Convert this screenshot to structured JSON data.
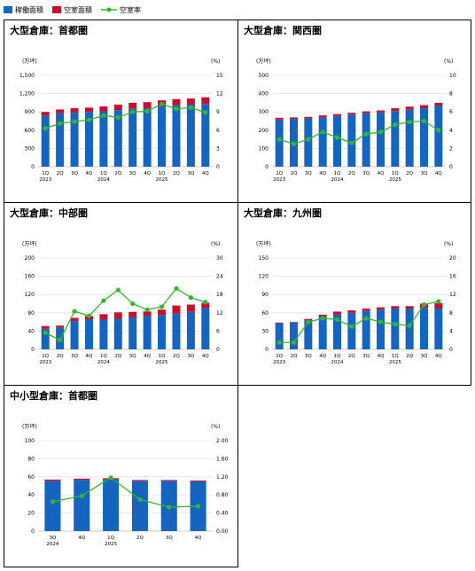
{
  "legend": {
    "bar_occupied": "稼働面積",
    "bar_vacant": "空室面積",
    "line_rate": "空室率"
  },
  "colors": {
    "occupied": "#1565c0",
    "vacant": "#c8102e",
    "rate": "#33b633",
    "axis": "#999999",
    "grid": "#d9d9d9"
  },
  "chart_data": [
    {
      "id": "tokyo_large",
      "type": "bar",
      "title": "大型倉庫：首都圏",
      "left_unit": "(万坪)",
      "right_unit": "(%)",
      "left_ylim": [
        0,
        1500
      ],
      "left_ticks": [
        0,
        300,
        600,
        900,
        1200,
        1500
      ],
      "left_tick_labels": [
        "0",
        "300",
        "600",
        "900",
        "1,200",
        "1,500"
      ],
      "right_ylim": [
        0,
        15
      ],
      "right_ticks": [
        0,
        3,
        6,
        9,
        12,
        15
      ],
      "right_tick_labels": [
        "0",
        "3",
        "6",
        "9",
        "12",
        "15"
      ],
      "categories": [
        "1Q",
        "2Q",
        "3Q",
        "4Q",
        "1Q",
        "2Q",
        "3Q",
        "4Q",
        "1Q",
        "2Q",
        "3Q",
        "4Q"
      ],
      "year_labels": [
        {
          "index": 0,
          "label": "2023"
        },
        {
          "index": 4,
          "label": "2024"
        },
        {
          "index": 8,
          "label": "2025"
        }
      ],
      "series": [
        {
          "name": "稼働面積",
          "kind": "bar",
          "values": [
            840,
            880,
            890,
            900,
            910,
            930,
            950,
            960,
            990,
            1010,
            1020,
            1030
          ]
        },
        {
          "name": "空室面積",
          "kind": "bar",
          "values": [
            60,
            60,
            70,
            70,
            80,
            90,
            100,
            100,
            100,
            100,
            100,
            110
          ]
        },
        {
          "name": "空室率",
          "kind": "line",
          "axis": "right",
          "values": [
            6.3,
            7.1,
            7.4,
            7.7,
            8.4,
            8.1,
            9.0,
            9.1,
            10.3,
            9.5,
            9.7,
            8.9
          ]
        }
      ]
    },
    {
      "id": "kansai_large",
      "type": "bar",
      "title": "大型倉庫：関西圏",
      "left_unit": "(万坪)",
      "right_unit": "(%)",
      "left_ylim": [
        0,
        500
      ],
      "left_ticks": [
        0,
        100,
        200,
        300,
        400,
        500
      ],
      "left_tick_labels": [
        "0",
        "100",
        "200",
        "300",
        "400",
        "500"
      ],
      "right_ylim": [
        0,
        10
      ],
      "right_ticks": [
        0,
        2,
        4,
        6,
        8,
        10
      ],
      "right_tick_labels": [
        "0",
        "2",
        "4",
        "6",
        "8",
        "10"
      ],
      "categories": [
        "1Q",
        "2Q",
        "3Q",
        "4Q",
        "1Q",
        "2Q",
        "3Q",
        "4Q",
        "1Q",
        "2Q",
        "3Q",
        "4Q"
      ],
      "year_labels": [
        {
          "index": 0,
          "label": "2023"
        },
        {
          "index": 4,
          "label": "2024"
        },
        {
          "index": 8,
          "label": "2025"
        }
      ],
      "series": [
        {
          "name": "稼働面積",
          "kind": "bar",
          "values": [
            258,
            262,
            264,
            270,
            278,
            285,
            293,
            297,
            305,
            312,
            320,
            335
          ]
        },
        {
          "name": "空室面積",
          "kind": "bar",
          "values": [
            10,
            8,
            9,
            11,
            10,
            10,
            10,
            11,
            15,
            17,
            17,
            15
          ]
        },
        {
          "name": "空室率",
          "kind": "line",
          "axis": "right",
          "values": [
            3.0,
            2.5,
            3.0,
            3.8,
            3.2,
            2.6,
            3.6,
            3.8,
            4.6,
            4.9,
            5.0,
            4.0
          ]
        }
      ]
    },
    {
      "id": "chubu_large",
      "type": "bar",
      "title": "大型倉庫：中部圏",
      "left_unit": "(万坪)",
      "right_unit": "(%)",
      "left_ylim": [
        0,
        200
      ],
      "left_ticks": [
        0,
        40,
        80,
        120,
        160,
        200
      ],
      "left_tick_labels": [
        "0",
        "40",
        "80",
        "120",
        "160",
        "200"
      ],
      "right_ylim": [
        0,
        30
      ],
      "right_ticks": [
        0,
        6,
        12,
        18,
        24,
        30
      ],
      "right_tick_labels": [
        "0",
        "6",
        "12",
        "18",
        "24",
        "30"
      ],
      "categories": [
        "1Q",
        "2Q",
        "3Q",
        "4Q",
        "1Q",
        "2Q",
        "3Q",
        "4Q",
        "1Q",
        "2Q",
        "3Q",
        "4Q"
      ],
      "year_labels": [
        {
          "index": 0,
          "label": "2023"
        },
        {
          "index": 4,
          "label": "2024"
        },
        {
          "index": 8,
          "label": "2025"
        }
      ],
      "series": [
        {
          "name": "稼働面積",
          "kind": "bar",
          "values": [
            45,
            47,
            62,
            65,
            65,
            67,
            70,
            73,
            75,
            78,
            82,
            90
          ]
        },
        {
          "name": "空室面積",
          "kind": "bar",
          "values": [
            6,
            5,
            7,
            8,
            12,
            14,
            12,
            10,
            12,
            18,
            16,
            12
          ]
        },
        {
          "name": "空室率",
          "kind": "line",
          "axis": "right",
          "values": [
            5.5,
            3.0,
            12.5,
            11.0,
            16.0,
            19.5,
            15.0,
            13.0,
            14.0,
            20.0,
            17.0,
            15.5
          ]
        }
      ]
    },
    {
      "id": "kyushu_large",
      "type": "bar",
      "title": "大型倉庫：九州圏",
      "left_unit": "(万坪)",
      "right_unit": "(%)",
      "left_ylim": [
        0,
        150
      ],
      "left_ticks": [
        0,
        30,
        60,
        90,
        120,
        150
      ],
      "left_tick_labels": [
        "0",
        "30",
        "60",
        "90",
        "120",
        "150"
      ],
      "right_ylim": [
        0,
        20
      ],
      "right_ticks": [
        0,
        4,
        8,
        12,
        16,
        20
      ],
      "right_tick_labels": [
        "0",
        "4",
        "8",
        "12",
        "16",
        "20"
      ],
      "categories": [
        "1Q",
        "2Q",
        "3Q",
        "4Q",
        "1Q",
        "2Q",
        "3Q",
        "4Q",
        "1Q",
        "2Q",
        "3Q",
        "4Q"
      ],
      "year_labels": [
        {
          "index": 0,
          "label": "2023"
        },
        {
          "index": 4,
          "label": "2024"
        },
        {
          "index": 8,
          "label": "2025"
        }
      ],
      "series": [
        {
          "name": "稼働面積",
          "kind": "bar",
          "values": [
            43,
            44,
            47,
            54,
            57,
            60,
            63,
            65,
            67,
            67,
            68,
            67
          ]
        },
        {
          "name": "空室面積",
          "kind": "bar",
          "values": [
            1,
            1,
            3,
            3,
            5,
            4,
            4,
            4,
            4,
            4,
            7,
            9
          ]
        },
        {
          "name": "空室率",
          "kind": "line",
          "axis": "right",
          "values": [
            1.5,
            1.5,
            6.0,
            6.8,
            6.5,
            5.0,
            6.8,
            6.0,
            5.5,
            5.2,
            9.8,
            10.5
          ]
        }
      ]
    },
    {
      "id": "tokyo_small",
      "type": "bar",
      "title": "中小型倉庫：首都圏",
      "left_unit": "(万坪)",
      "right_unit": "(%)",
      "left_ylim": [
        0,
        100
      ],
      "left_ticks": [
        0,
        20,
        40,
        60,
        80,
        100
      ],
      "left_tick_labels": [
        "0",
        "20",
        "40",
        "60",
        "80",
        "100"
      ],
      "right_ylim": [
        0,
        2
      ],
      "right_ticks": [
        0,
        0.4,
        0.8,
        1.2,
        1.6,
        2.0
      ],
      "right_tick_labels": [
        "0.00",
        "0.40",
        "0.80",
        "1.20",
        "1.60",
        "2.00"
      ],
      "categories": [
        "3Q",
        "4Q",
        "1Q",
        "2Q",
        "3Q",
        "4Q"
      ],
      "year_labels": [
        {
          "index": 0,
          "label": "2024"
        },
        {
          "index": 2,
          "label": "2025"
        }
      ],
      "series": [
        {
          "name": "稼働面積",
          "kind": "bar",
          "values": [
            55.5,
            56.5,
            57.0,
            55.5,
            55.5,
            55.0
          ]
        },
        {
          "name": "空室面積",
          "kind": "bar",
          "values": [
            1.5,
            1.5,
            1.5,
            1.0,
            1.0,
            1.0
          ]
        },
        {
          "name": "空室率",
          "kind": "line",
          "axis": "right",
          "values": [
            0.65,
            0.78,
            1.18,
            0.7,
            0.53,
            0.55
          ]
        }
      ]
    }
  ]
}
